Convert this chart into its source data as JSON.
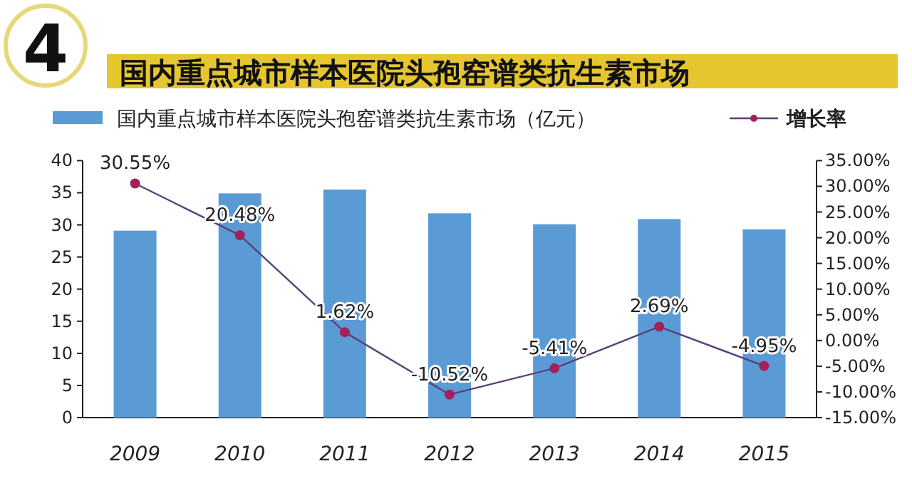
{
  "chart_data": {
    "type": "bar",
    "title": "国内重点城市样本医院头孢窑谱类抗生素市场",
    "annotations": [
      "4"
    ],
    "categories": [
      "2009",
      "2010",
      "2011",
      "2012",
      "2013",
      "2014",
      "2015"
    ],
    "series": [
      {
        "name": "国内重点城市样本医院头孢窑谱类抗生素市场（亿元）",
        "color": "#5b9bd5",
        "values": [
          29.1,
          34.9,
          35.5,
          31.8,
          30.1,
          30.9,
          29.3
        ]
      },
      {
        "name": "增长率",
        "type": "line",
        "axis": "y2",
        "color": "#a3215a",
        "marker": "circle",
        "values": [
          30.55,
          20.48,
          1.62,
          -10.52,
          -5.41,
          2.69,
          -4.95
        ],
        "value_labels": [
          "30.55%",
          "20.48%",
          "1.62%",
          "-10.52%",
          "-5.41%",
          "2.69%",
          "-4.95%"
        ]
      }
    ],
    "ylim": [
      0,
      40
    ],
    "yticks": [
      0,
      5,
      10,
      15,
      20,
      25,
      30,
      35,
      40
    ],
    "y2lim": [
      -15,
      35
    ],
    "y2ticks": [
      {
        "value": -15,
        "label": "-15.00%"
      },
      {
        "value": -10,
        "label": "-10.00%"
      },
      {
        "value": -5,
        "label": "-5.00%"
      },
      {
        "value": 0,
        "label": "0.00%"
      },
      {
        "value": 5,
        "label": "5.00%"
      },
      {
        "value": 10,
        "label": "10.00%"
      },
      {
        "value": 15,
        "label": "15.00%"
      },
      {
        "value": 20,
        "label": "20.00%"
      },
      {
        "value": 25,
        "label": "25.00%"
      },
      {
        "value": 30,
        "label": "30.00%"
      },
      {
        "value": 35,
        "label": "35.00%"
      }
    ],
    "legend": "top",
    "grid": false
  }
}
